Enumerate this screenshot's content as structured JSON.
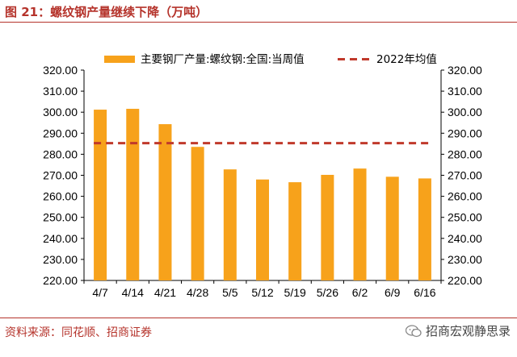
{
  "header": {
    "title": "图 21：螺纹钢产量继续下降（万吨）"
  },
  "footer": {
    "source": "资料来源：同花顺、招商证券",
    "brand": "招商宏观静思录"
  },
  "colors": {
    "accent": "#b5332b",
    "bar": "#f7a21b",
    "average_line": "#c0392b"
  },
  "chart_data": {
    "type": "bar",
    "categories": [
      "4/7",
      "4/14",
      "4/21",
      "4/28",
      "5/5",
      "5/12",
      "5/19",
      "5/26",
      "6/2",
      "6/9",
      "6/16"
    ],
    "series": [
      {
        "name": "主要钢厂产量:螺纹钢:全国:当周值",
        "type": "bar",
        "values": [
          301.2,
          301.6,
          294.3,
          283.5,
          272.8,
          268.0,
          266.7,
          270.2,
          273.2,
          269.3,
          268.5
        ]
      },
      {
        "name": "2022年均值",
        "type": "line",
        "style": "dashed",
        "value": 285.3
      }
    ],
    "ylim": [
      220,
      320
    ],
    "yticks": [
      "220.00",
      "230.00",
      "240.00",
      "250.00",
      "260.00",
      "270.00",
      "280.00",
      "290.00",
      "300.00",
      "310.00",
      "320.00"
    ],
    "y2ticks": [
      "220.00",
      "230.00",
      "240.00",
      "250.00",
      "260.00",
      "270.00",
      "280.00",
      "290.00",
      "300.00",
      "310.00",
      "320.00"
    ],
    "legend_position": "top",
    "grid": false
  }
}
